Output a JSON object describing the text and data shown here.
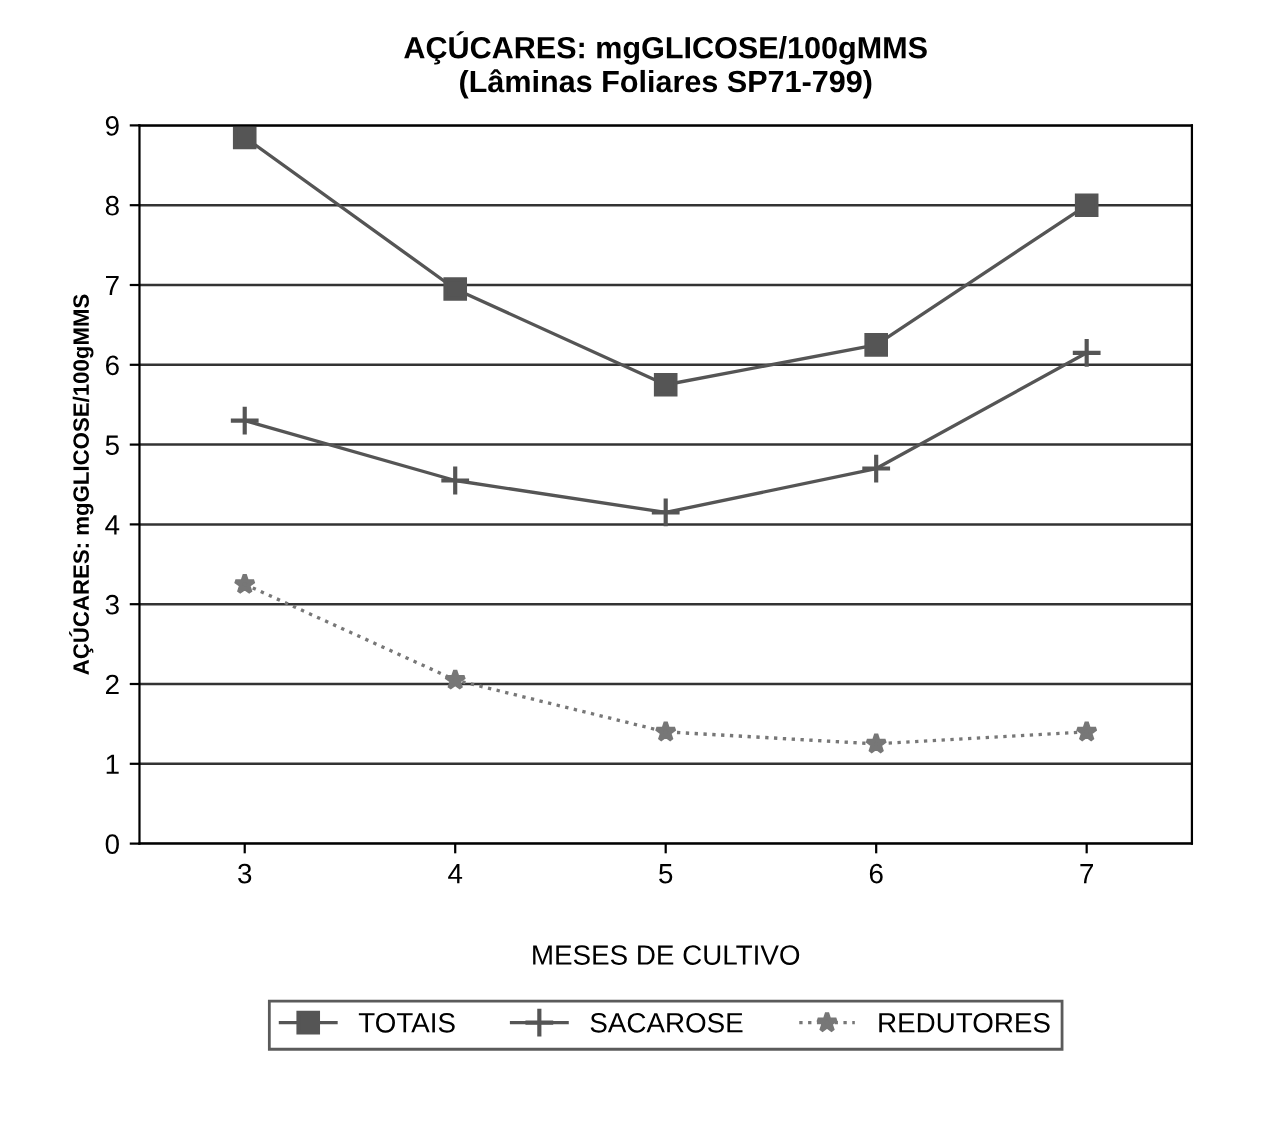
{
  "chart_data": {
    "type": "line",
    "title": "AÇÚCARES: mgGLICOSE/100gMMS\n(Lâminas Foliares SP71-799)",
    "xlabel": "MESES DE CULTIVO",
    "ylabel": "AÇÚCARES: mgGLICOSE/100gMMS",
    "categories": [
      "3",
      "4",
      "5",
      "6",
      "7"
    ],
    "series": [
      {
        "name": "TOTAIS",
        "color": "#555555",
        "marker": "square",
        "line_style": "solid",
        "values": [
          8.85,
          6.95,
          5.75,
          6.25,
          8.0
        ]
      },
      {
        "name": "SACAROSE",
        "color": "#555555",
        "marker": "cross",
        "line_style": "solid",
        "values": [
          5.3,
          4.55,
          4.15,
          4.7,
          6.15
        ]
      },
      {
        "name": "REDUTORES",
        "color": "#777777",
        "marker": "star",
        "line_style": "dotted",
        "values": [
          3.25,
          2.05,
          1.4,
          1.25,
          1.4
        ]
      }
    ],
    "ylim": [
      0,
      9
    ],
    "yticks": [
      0,
      1,
      2,
      3,
      4,
      5,
      6,
      7,
      8,
      9
    ],
    "grid": "y",
    "legend": "bottom"
  }
}
